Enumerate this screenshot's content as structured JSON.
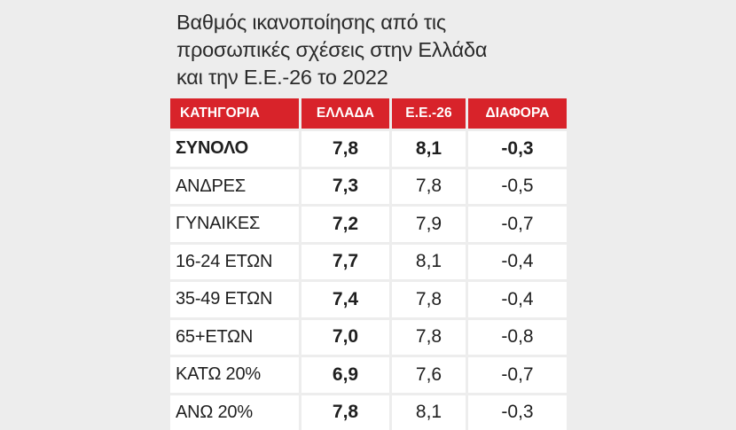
{
  "title": {
    "line1": "Βαθμός ικανοποίησης από τις",
    "line2": "προσωπικές σχέσεις στην Ελλάδα",
    "line3": "και την Ε.Ε.-26 το 2022"
  },
  "colors": {
    "header_red": "#d8232a",
    "background": "#ededed",
    "row_background": "#ffffff"
  },
  "table": {
    "headers": [
      "ΚΑΤΗΓΟΡΙΑ",
      "ΕΛΛΑΔΑ",
      "Ε.Ε.-26",
      "ΔΙΑΦΟΡΑ"
    ],
    "rows": [
      [
        "ΣΥΝΟΛΟ",
        "7,8",
        "8,1",
        "-0,3"
      ],
      [
        "ΑΝΔΡΕΣ",
        "7,3",
        "7,8",
        "-0,5"
      ],
      [
        "ΓΥΝΑΙΚΕΣ",
        "7,2",
        "7,9",
        "-0,7"
      ],
      [
        "16-24 ΕΤΩΝ",
        "7,7",
        "8,1",
        "-0,4"
      ],
      [
        "35-49 ΕΤΩΝ",
        "7,4",
        "7,8",
        "-0,4"
      ],
      [
        "65+ΕΤΩΝ",
        "7,0",
        "7,8",
        "-0,8"
      ],
      [
        "ΚΑΤΩ 20%",
        "6,9",
        "7,6",
        "-0,7"
      ],
      [
        "ΑΝΩ 20%",
        "7,8",
        "8,1",
        "-0,3"
      ]
    ]
  }
}
